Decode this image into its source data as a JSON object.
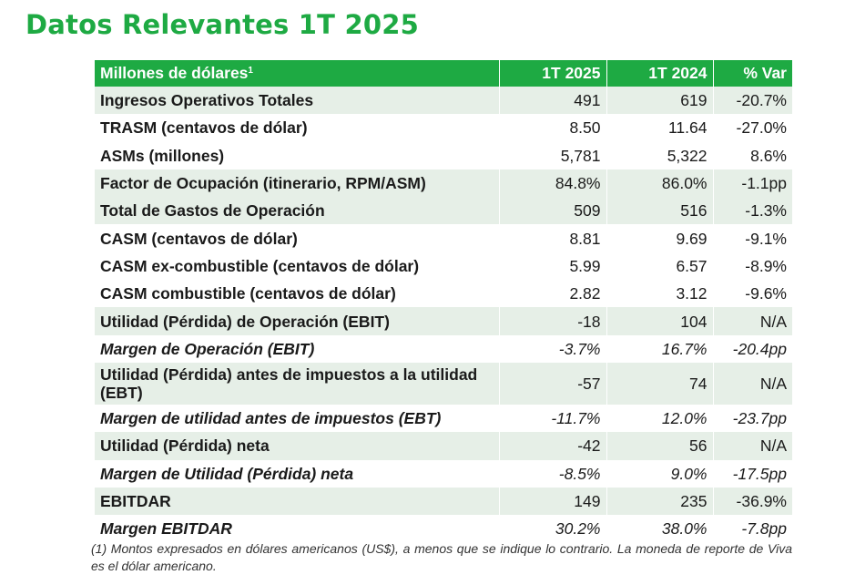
{
  "title": "Datos Relevantes 1T 2025",
  "table": {
    "headers": {
      "label": "Millones de dólares",
      "label_sup": "1",
      "col1": "1T 2025",
      "col2": "1T 2024",
      "col3": "% Var"
    },
    "rows": [
      {
        "label": "Ingresos Operativos Totales",
        "v1": "491",
        "v2": "619",
        "v3": "-20.7%"
      },
      {
        "label": "TRASM (centavos de dólar)",
        "v1": "8.50",
        "v2": "11.64",
        "v3": "-27.0%"
      },
      {
        "label": "ASMs (millones)",
        "v1": "5,781",
        "v2": "5,322",
        "v3": "8.6%"
      },
      {
        "label": "Factor de Ocupación (itinerario, RPM/ASM)",
        "v1": "84.8%",
        "v2": "86.0%",
        "v3": "-1.1pp"
      },
      {
        "label": "Total de Gastos de Operación",
        "v1": "509",
        "v2": "516",
        "v3": "-1.3%"
      },
      {
        "label": "CASM (centavos de dólar)",
        "v1": "8.81",
        "v2": "9.69",
        "v3": "-9.1%"
      },
      {
        "label": "CASM ex-combustible (centavos de dólar)",
        "v1": "5.99",
        "v2": "6.57",
        "v3": "-8.9%"
      },
      {
        "label": "CASM combustible (centavos de dólar)",
        "v1": "2.82",
        "v2": "3.12",
        "v3": "-9.6%"
      },
      {
        "label": "Utilidad (Pérdida) de Operación (EBIT)",
        "v1": "-18",
        "v2": "104",
        "v3": "N/A"
      },
      {
        "label": "Margen de Operación (EBIT)",
        "v1": "-3.7%",
        "v2": "16.7%",
        "v3": "-20.4pp"
      },
      {
        "label": "Utilidad (Pérdida) antes de impuestos a la utilidad (EBT)",
        "v1": "-57",
        "v2": "74",
        "v3": "N/A"
      },
      {
        "label": "Margen de utilidad antes de impuestos (EBT)",
        "v1": "-11.7%",
        "v2": "12.0%",
        "v3": "-23.7pp"
      },
      {
        "label": "Utilidad (Pérdida) neta",
        "v1": "-42",
        "v2": "56",
        "v3": "N/A"
      },
      {
        "label": "Margen de Utilidad (Pérdida) neta",
        "v1": "-8.5%",
        "v2": "9.0%",
        "v3": "-17.5pp"
      },
      {
        "label": "EBITDAR",
        "v1": "149",
        "v2": "235",
        "v3": "-36.9%"
      },
      {
        "label": "Margen EBITDAR",
        "v1": "30.2%",
        "v2": "38.0%",
        "v3": "-7.8pp"
      }
    ]
  },
  "footnote": "(1) Montos expresados en dólares americanos (US$), a menos que se indique lo contrario. La moneda de reporte de Viva es el dólar americano.",
  "colors": {
    "brand_green": "#1eaa43",
    "row_shade": "#e6efe7"
  }
}
